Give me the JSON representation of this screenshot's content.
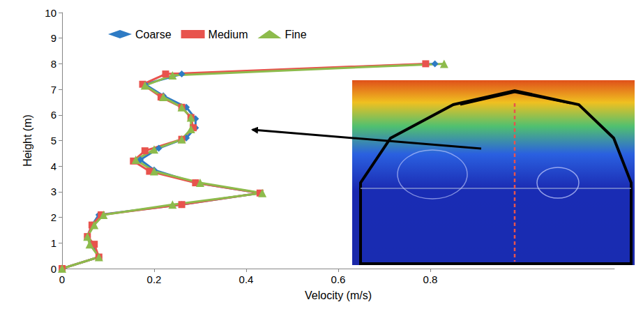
{
  "chart_data": {
    "type": "line",
    "x_label": "Velocity (m/s)",
    "y_label": "Height (m)",
    "xlim": [
      0,
      1.2
    ],
    "xticks": [
      0,
      0.2,
      0.4,
      0.6,
      0.8
    ],
    "ylim": [
      0,
      10
    ],
    "yticks": [
      0,
      1,
      2,
      3,
      4,
      5,
      6,
      7,
      8,
      9,
      10
    ],
    "grid": false,
    "legend": "upper left",
    "series": [
      {
        "name": "Coarse",
        "color": "#2e7bc4",
        "marker": "diamond",
        "x": [
          0,
          0.08,
          0.065,
          0.055,
          0.065,
          0.08,
          0.26,
          0.43,
          0.29,
          0.2,
          0.17,
          0.21,
          0.27,
          0.29,
          0.29,
          0.27,
          0.22,
          0.18,
          0.26,
          0.81
        ],
        "values": [
          0,
          0.45,
          0.95,
          1.25,
          1.7,
          2.1,
          2.5,
          2.95,
          3.35,
          3.85,
          4.25,
          4.7,
          5.1,
          5.5,
          5.85,
          6.3,
          6.75,
          7.2,
          7.6,
          8.0
        ]
      },
      {
        "name": "Medium",
        "color": "#e8534d",
        "marker": "square",
        "x": [
          0,
          0.08,
          0.07,
          0.055,
          0.065,
          0.085,
          0.26,
          0.43,
          0.29,
          0.19,
          0.155,
          0.18,
          0.26,
          0.285,
          0.28,
          0.26,
          0.215,
          0.175,
          0.225,
          0.79
        ],
        "values": [
          0,
          0.45,
          0.95,
          1.25,
          1.7,
          2.1,
          2.5,
          2.95,
          3.35,
          3.8,
          4.2,
          4.6,
          5.05,
          5.5,
          5.9,
          6.3,
          6.7,
          7.2,
          7.6,
          8.0
        ]
      },
      {
        "name": "Fine",
        "color": "#8dbb4c",
        "marker": "triangle",
        "x": [
          0,
          0.08,
          0.06,
          0.055,
          0.07,
          0.09,
          0.24,
          0.435,
          0.3,
          0.2,
          0.16,
          0.2,
          0.26,
          0.28,
          0.28,
          0.26,
          0.22,
          0.18,
          0.24,
          0.83
        ],
        "values": [
          0,
          0.45,
          0.95,
          1.25,
          1.7,
          2.1,
          2.5,
          2.95,
          3.35,
          3.8,
          4.25,
          4.65,
          5.05,
          5.45,
          5.9,
          6.3,
          6.7,
          7.15,
          7.55,
          8.0
        ]
      }
    ]
  }
}
